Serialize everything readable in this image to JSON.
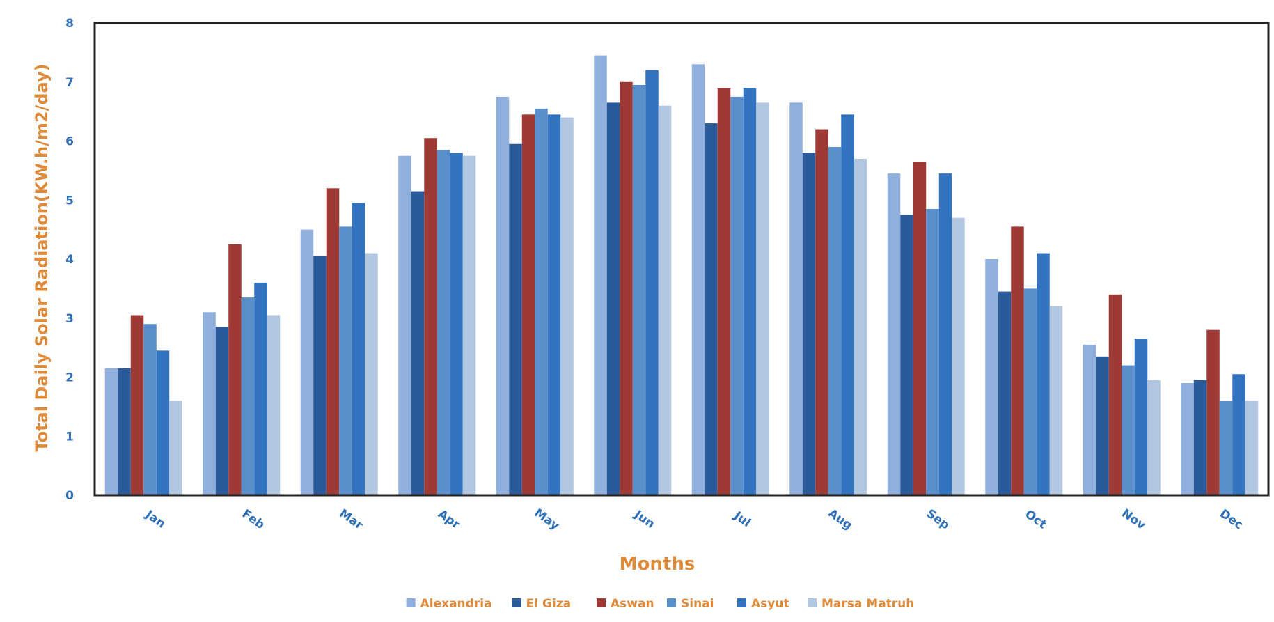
{
  "chart_data": {
    "type": "bar",
    "title": "",
    "xlabel": "Months",
    "ylabel": "Total Daily Solar Radiation(KW.h/m2/day)",
    "ylim": [
      0,
      8
    ],
    "yticks": [
      "0",
      "1",
      "2",
      "3",
      "4",
      "5",
      "6",
      "7",
      "8"
    ],
    "grid": false,
    "legend_position": "bottom",
    "categories": [
      "Jan",
      "Feb",
      "Mar",
      "Apr",
      "May",
      "Jun",
      "Jul",
      "Aug",
      "Sep",
      "Oct",
      "Nov",
      "Dec"
    ],
    "series": [
      {
        "name": "Alexandria",
        "color": "#8fb0dc",
        "values": [
          2.15,
          3.1,
          4.5,
          5.75,
          6.75,
          7.45,
          7.3,
          6.65,
          5.45,
          4.0,
          2.55,
          1.9
        ]
      },
      {
        "name": "El Giza",
        "color": "#2b5a9a",
        "values": [
          2.15,
          2.85,
          4.05,
          5.15,
          5.95,
          6.65,
          6.3,
          5.8,
          4.75,
          3.45,
          2.35,
          1.95
        ]
      },
      {
        "name": "Aswan",
        "color": "#9e3a36",
        "values": [
          3.05,
          4.25,
          5.2,
          6.05,
          6.45,
          7.0,
          6.9,
          6.2,
          5.65,
          4.55,
          3.4,
          2.8
        ]
      },
      {
        "name": "Sinai",
        "color": "#5b8fcc",
        "values": [
          2.9,
          3.35,
          4.55,
          5.85,
          6.55,
          6.95,
          6.75,
          5.9,
          4.85,
          3.5,
          2.2,
          1.6
        ]
      },
      {
        "name": "Asyut",
        "color": "#3274bf",
        "values": [
          2.45,
          3.6,
          4.95,
          5.8,
          6.45,
          7.2,
          6.9,
          6.45,
          5.45,
          4.1,
          2.65,
          2.05
        ]
      },
      {
        "name": "Marsa Matruh",
        "color": "#b3c6e0",
        "values": [
          1.6,
          3.05,
          4.1,
          5.75,
          6.4,
          6.6,
          6.65,
          5.7,
          4.7,
          3.2,
          1.95,
          1.6
        ]
      }
    ]
  }
}
